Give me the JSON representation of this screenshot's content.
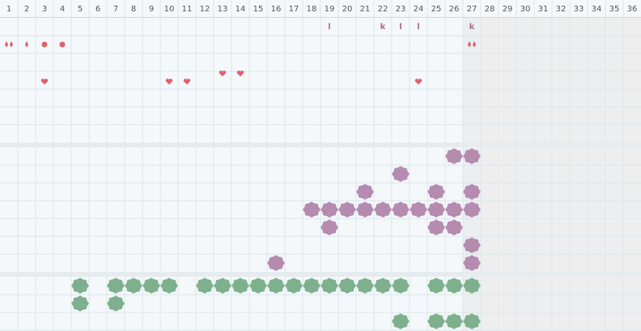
{
  "days": [
    1,
    2,
    3,
    4,
    5,
    6,
    7,
    8,
    9,
    10,
    11,
    12,
    13,
    14,
    15,
    16,
    17,
    18,
    19,
    20,
    21,
    22,
    23,
    24,
    25,
    26,
    27,
    28,
    29,
    30,
    31,
    32,
    33,
    34,
    35,
    36
  ],
  "today": 27,
  "top": {
    "letters": [
      {
        "day": 19,
        "text": "l"
      },
      {
        "day": 22,
        "text": "k"
      },
      {
        "day": 23,
        "text": "l"
      },
      {
        "day": 24,
        "text": "l"
      },
      {
        "day": 27,
        "text": "k"
      }
    ],
    "double_drops": [
      1,
      27
    ],
    "drops": [
      2
    ],
    "dots": [
      3,
      4
    ],
    "hearts": [
      3,
      10,
      11,
      13,
      14,
      24
    ]
  },
  "middle": [
    [
      26,
      27
    ],
    [
      23
    ],
    [
      21,
      25,
      27
    ],
    [
      18,
      19,
      20,
      21,
      22,
      23,
      24,
      25,
      26,
      27
    ],
    [
      19,
      25,
      26
    ],
    [
      27
    ],
    [
      16,
      27
    ]
  ],
  "bottom": [
    [
      5,
      7,
      8,
      9,
      10,
      12,
      13,
      14,
      15,
      16,
      17,
      18,
      19,
      20,
      21,
      22,
      23,
      25,
      26,
      27
    ],
    [
      5,
      7
    ],
    [
      23,
      25,
      26,
      27
    ]
  ]
}
